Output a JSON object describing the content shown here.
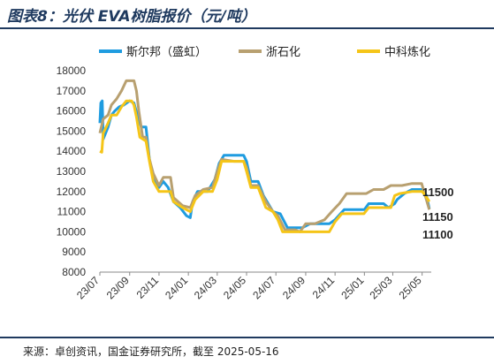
{
  "title": "图表8：光伏 EVA树脂报价（元/吨）",
  "source": "来源：卓创资讯，国金证券研究所，截至 2025-05-16",
  "chart_data": {
    "type": "line",
    "title": "光伏 EVA树脂报价（元/吨）",
    "ylim": [
      8000,
      18000
    ],
    "yticks": [
      8000,
      9000,
      10000,
      11000,
      12000,
      13000,
      14000,
      15000,
      16000,
      17000,
      18000
    ],
    "xtick_labels": [
      "23/07",
      "23/09",
      "23/11",
      "24/01",
      "24/03",
      "24/05",
      "24/07",
      "24/09",
      "24/11",
      "25/01",
      "25/03",
      "25/05"
    ],
    "x_start": "2023-07-01",
    "x_end": "2025-05-20",
    "legend_position": "top",
    "grid": false,
    "series": [
      {
        "name": "斯尔邦（盛虹）",
        "color": "#1f9ce0",
        "points": [
          [
            "2023-07-01",
            15400
          ],
          [
            "2023-07-03",
            16400
          ],
          [
            "2023-07-06",
            16500
          ],
          [
            "2023-07-08",
            14600
          ],
          [
            "2023-07-18",
            15200
          ],
          [
            "2023-07-25",
            15800
          ],
          [
            "2023-08-01",
            16000
          ],
          [
            "2023-08-10",
            16200
          ],
          [
            "2023-08-20",
            16300
          ],
          [
            "2023-09-01",
            16500
          ],
          [
            "2023-09-10",
            16400
          ],
          [
            "2023-09-18",
            15700
          ],
          [
            "2023-09-25",
            15200
          ],
          [
            "2023-10-05",
            15200
          ],
          [
            "2023-10-12",
            13600
          ],
          [
            "2023-10-20",
            12700
          ],
          [
            "2023-11-01",
            12200
          ],
          [
            "2023-11-10",
            12500
          ],
          [
            "2023-11-20",
            12200
          ],
          [
            "2023-12-01",
            11500
          ],
          [
            "2023-12-15",
            11200
          ],
          [
            "2023-12-28",
            10800
          ],
          [
            "2024-01-05",
            10700
          ],
          [
            "2024-01-10",
            11500
          ],
          [
            "2024-01-20",
            12000
          ],
          [
            "2024-02-10",
            12000
          ],
          [
            "2024-02-25",
            12600
          ],
          [
            "2024-03-05",
            13400
          ],
          [
            "2024-03-15",
            13800
          ],
          [
            "2024-04-05",
            13800
          ],
          [
            "2024-04-25",
            13800
          ],
          [
            "2024-05-01",
            13500
          ],
          [
            "2024-05-10",
            12500
          ],
          [
            "2024-05-25",
            12500
          ],
          [
            "2024-06-05",
            11800
          ],
          [
            "2024-06-15",
            11400
          ],
          [
            "2024-06-25",
            11000
          ],
          [
            "2024-07-10",
            10900
          ],
          [
            "2024-07-25",
            10200
          ],
          [
            "2024-08-10",
            10200
          ],
          [
            "2024-08-25",
            10200
          ],
          [
            "2024-09-10",
            10400
          ],
          [
            "2024-10-01",
            10400
          ],
          [
            "2024-10-20",
            10400
          ],
          [
            "2024-11-01",
            10600
          ],
          [
            "2024-11-20",
            11100
          ],
          [
            "2024-12-20",
            11100
          ],
          [
            "2025-01-01",
            11100
          ],
          [
            "2025-01-10",
            11400
          ],
          [
            "2025-02-10",
            11400
          ],
          [
            "2025-02-20",
            11200
          ],
          [
            "2025-03-05",
            11400
          ],
          [
            "2025-03-10",
            11600
          ],
          [
            "2025-03-25",
            11900
          ],
          [
            "2025-04-10",
            12100
          ],
          [
            "2025-05-01",
            12100
          ],
          [
            "2025-05-10",
            11800
          ],
          [
            "2025-05-16",
            11150
          ]
        ]
      },
      {
        "name": "浙石化",
        "color": "#b8a070",
        "points": [
          [
            "2023-07-01",
            14900
          ],
          [
            "2023-07-08",
            15600
          ],
          [
            "2023-07-18",
            15800
          ],
          [
            "2023-07-25",
            16300
          ],
          [
            "2023-08-05",
            16600
          ],
          [
            "2023-08-15",
            17000
          ],
          [
            "2023-08-25",
            17500
          ],
          [
            "2023-09-10",
            17500
          ],
          [
            "2023-09-15",
            17000
          ],
          [
            "2023-09-20",
            16000
          ],
          [
            "2023-09-28",
            14700
          ],
          [
            "2023-10-05",
            14700
          ],
          [
            "2023-10-12",
            13600
          ],
          [
            "2023-10-20",
            12900
          ],
          [
            "2023-11-01",
            12300
          ],
          [
            "2023-11-10",
            12700
          ],
          [
            "2023-11-25",
            12700
          ],
          [
            "2023-12-01",
            11700
          ],
          [
            "2023-12-20",
            11300
          ],
          [
            "2024-01-05",
            11200
          ],
          [
            "2024-01-15",
            11800
          ],
          [
            "2024-02-01",
            12100
          ],
          [
            "2024-02-20",
            12200
          ],
          [
            "2024-03-01",
            13000
          ],
          [
            "2024-03-10",
            13600
          ],
          [
            "2024-04-05",
            13500
          ],
          [
            "2024-04-25",
            13500
          ],
          [
            "2024-05-01",
            13200
          ],
          [
            "2024-05-10",
            12300
          ],
          [
            "2024-05-25",
            12300
          ],
          [
            "2024-06-10",
            11500
          ],
          [
            "2024-06-25",
            11000
          ],
          [
            "2024-07-05",
            10800
          ],
          [
            "2024-07-20",
            10100
          ],
          [
            "2024-08-10",
            10100
          ],
          [
            "2024-08-20",
            10000
          ],
          [
            "2024-09-01",
            10400
          ],
          [
            "2024-09-20",
            10400
          ],
          [
            "2024-10-10",
            10600
          ],
          [
            "2024-10-25",
            11000
          ],
          [
            "2024-11-10",
            11400
          ],
          [
            "2024-11-25",
            11900
          ],
          [
            "2024-12-20",
            11900
          ],
          [
            "2025-01-05",
            11900
          ],
          [
            "2025-01-20",
            12100
          ],
          [
            "2025-02-10",
            12100
          ],
          [
            "2025-02-25",
            12300
          ],
          [
            "2025-03-20",
            12300
          ],
          [
            "2025-04-10",
            12400
          ],
          [
            "2025-04-30",
            12400
          ],
          [
            "2025-05-05",
            12000
          ],
          [
            "2025-05-16",
            11100
          ]
        ]
      },
      {
        "name": "中科炼化",
        "color": "#f5c518",
        "points": [
          [
            "2023-07-01",
            14000
          ],
          [
            "2023-07-05",
            13950
          ],
          [
            "2023-07-08",
            14900
          ],
          [
            "2023-07-18",
            15400
          ],
          [
            "2023-07-25",
            15800
          ],
          [
            "2023-08-05",
            15800
          ],
          [
            "2023-08-15",
            16200
          ],
          [
            "2023-08-25",
            16500
          ],
          [
            "2023-09-05",
            16500
          ],
          [
            "2023-09-10",
            16300
          ],
          [
            "2023-09-15",
            15700
          ],
          [
            "2023-09-22",
            14700
          ],
          [
            "2023-10-05",
            14500
          ],
          [
            "2023-10-12",
            13500
          ],
          [
            "2023-10-20",
            12500
          ],
          [
            "2023-11-01",
            12000
          ],
          [
            "2023-11-15",
            12000
          ],
          [
            "2023-11-25",
            12000
          ],
          [
            "2023-12-01",
            11500
          ],
          [
            "2023-12-20",
            11200
          ],
          [
            "2024-01-05",
            11000
          ],
          [
            "2024-01-15",
            11600
          ],
          [
            "2024-02-01",
            12000
          ],
          [
            "2024-02-20",
            12000
          ],
          [
            "2024-03-01",
            12600
          ],
          [
            "2024-03-10",
            13500
          ],
          [
            "2024-04-05",
            13500
          ],
          [
            "2024-04-25",
            13500
          ],
          [
            "2024-05-01",
            13000
          ],
          [
            "2024-05-10",
            12200
          ],
          [
            "2024-05-25",
            12200
          ],
          [
            "2024-06-10",
            11200
          ],
          [
            "2024-06-25",
            11000
          ],
          [
            "2024-07-05",
            10600
          ],
          [
            "2024-07-15",
            10000
          ],
          [
            "2024-08-15",
            10000
          ],
          [
            "2024-09-01",
            10000
          ],
          [
            "2024-10-01",
            10000
          ],
          [
            "2024-10-20",
            10000
          ],
          [
            "2024-11-01",
            10500
          ],
          [
            "2024-11-15",
            10900
          ],
          [
            "2024-12-10",
            10900
          ],
          [
            "2024-12-31",
            10900
          ],
          [
            "2025-01-10",
            11200
          ],
          [
            "2025-02-15",
            11200
          ],
          [
            "2025-02-25",
            11200
          ],
          [
            "2025-03-05",
            11800
          ],
          [
            "2025-03-15",
            11900
          ],
          [
            "2025-04-10",
            12000
          ],
          [
            "2025-05-01",
            12000
          ],
          [
            "2025-05-08",
            11800
          ],
          [
            "2025-05-16",
            11500
          ]
        ]
      }
    ],
    "end_labels": [
      {
        "text": "11500",
        "series": 2
      },
      {
        "text": "11150",
        "series": 0
      },
      {
        "text": "11100",
        "series": 1
      }
    ]
  }
}
